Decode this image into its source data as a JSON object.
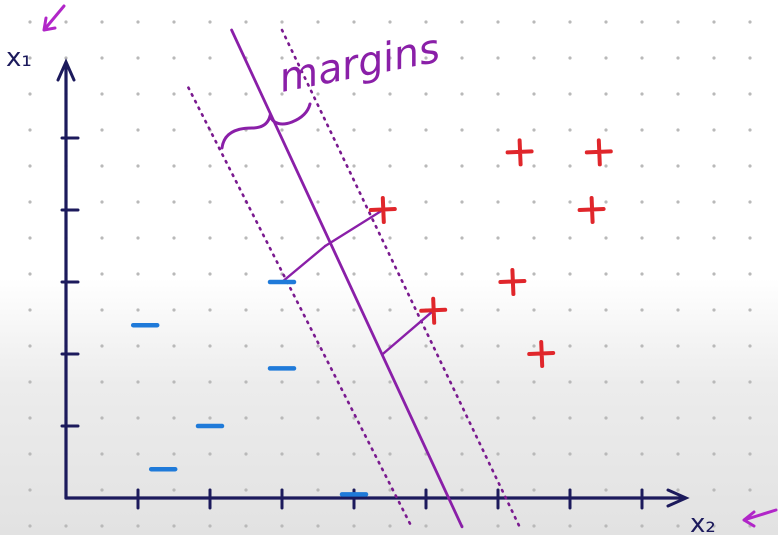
{
  "labels": {
    "margins": "margins",
    "x1_axis": "x₁",
    "x2_axis": "x₂"
  },
  "colors": {
    "axis": "#1c1a5c",
    "boundary": "#8a1fa8",
    "margin": "#7a1a8f",
    "positive": "#e0262b",
    "negative": "#1f7ad9",
    "arrow_accent": "#b126c8",
    "grid_dot": "#b9b9b9"
  },
  "chart_data": {
    "type": "scatter",
    "xlabel": "x₂",
    "ylabel": "x₁",
    "xlim": [
      0,
      8.5
    ],
    "ylim": [
      0,
      6
    ],
    "x_ticks": [
      1,
      2,
      3,
      4,
      5,
      6,
      7,
      8
    ],
    "y_ticks": [
      1,
      2,
      3,
      4,
      5
    ],
    "grid": "dotted",
    "series": [
      {
        "name": "+",
        "marker": "plus",
        "points": [
          [
            4.4,
            4.0
          ],
          [
            6.3,
            4.8
          ],
          [
            7.4,
            4.8
          ],
          [
            7.3,
            4.0
          ],
          [
            6.2,
            3.0
          ],
          [
            5.1,
            2.6
          ],
          [
            6.6,
            2.0
          ]
        ]
      },
      {
        "name": "−",
        "marker": "dash",
        "points": [
          [
            3.0,
            3.0
          ],
          [
            1.1,
            2.4
          ],
          [
            3.0,
            1.8
          ],
          [
            2.0,
            1.0
          ],
          [
            1.35,
            0.4
          ],
          [
            4.0,
            0.05
          ]
        ]
      }
    ],
    "decision_boundary": {
      "p1": [
        2.3,
        6.5
      ],
      "p2": [
        5.5,
        -0.4
      ]
    },
    "margins": [
      {
        "p1": [
          1.7,
          5.7
        ],
        "p2": [
          4.8,
          -0.4
        ]
      },
      {
        "p1": [
          3.0,
          6.5
        ],
        "p2": [
          6.3,
          -0.4
        ]
      }
    ],
    "support_connectors": [
      {
        "from": [
          3.0,
          3.0
        ],
        "to": [
          3.6,
          3.5
        ]
      },
      {
        "from": [
          4.4,
          4.0
        ],
        "to": [
          3.6,
          3.5
        ]
      },
      {
        "from": [
          5.1,
          2.6
        ],
        "to": [
          4.4,
          2.0
        ]
      }
    ]
  }
}
